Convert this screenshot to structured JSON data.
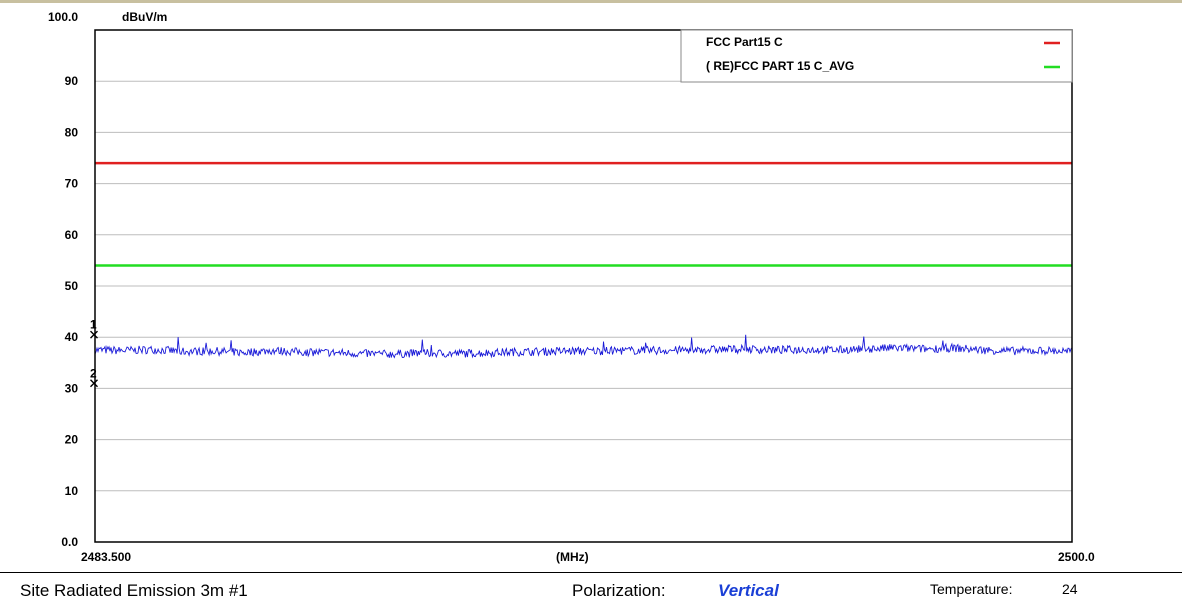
{
  "chart_data": {
    "type": "line",
    "y_unit_label": "dBuV/m",
    "x_unit_label": "(MHz)",
    "xlim": [
      2483.5,
      2500.0
    ],
    "ylim": [
      0,
      100
    ],
    "x_tick_labels": [
      "2483.500",
      "2500.0"
    ],
    "y_tick_labels": [
      "100.0",
      "90",
      "80",
      "70",
      "60",
      "50",
      "40",
      "30",
      "20",
      "10",
      "0.0"
    ],
    "y_ticks": [
      100,
      90,
      80,
      70,
      60,
      50,
      40,
      30,
      20,
      10,
      0
    ],
    "grid": true,
    "legend_position": "top-right",
    "limit_lines": [
      {
        "name": "FCC Part15 C",
        "value": 74,
        "color": "#e02020"
      },
      {
        "name": "( RE)FCC PART 15 C_AVG",
        "value": 54,
        "color": "#22dd22"
      }
    ],
    "series": [
      {
        "color": "#1a1ad8",
        "x": [
          2483.5,
          2484.0,
          2484.5,
          2485.0,
          2485.5,
          2486.0,
          2486.5,
          2487.0,
          2487.5,
          2488.0,
          2488.5,
          2489.0,
          2489.5,
          2490.0,
          2490.5,
          2491.0,
          2491.5,
          2492.0,
          2492.5,
          2493.0,
          2493.5,
          2494.0,
          2494.5,
          2495.0,
          2495.5,
          2496.0,
          2496.5,
          2497.0,
          2497.5,
          2498.0,
          2498.5,
          2499.0,
          2499.5,
          2500.0
        ],
        "y": [
          37.5,
          37.4,
          37.6,
          37.2,
          37.3,
          37.0,
          37.4,
          37.1,
          37.0,
          36.8,
          36.7,
          36.9,
          36.8,
          36.9,
          37.1,
          37.2,
          37.3,
          37.3,
          37.4,
          37.4,
          37.5,
          37.6,
          37.7,
          37.5,
          37.6,
          37.5,
          37.7,
          37.9,
          37.7,
          37.9,
          37.5,
          37.3,
          37.4,
          37.2
        ]
      }
    ],
    "markers": [
      {
        "label": "1",
        "x": 2483.5,
        "y": 40.5
      },
      {
        "label": "2",
        "x": 2483.5,
        "y": 31.0
      }
    ]
  },
  "footer": {
    "site_label": "Site  Radiated Emission 3m #1",
    "polarization_label": "Polarization:",
    "polarization_value": "Vertical",
    "temperature_label": "Temperature:",
    "temperature_value": "24"
  }
}
